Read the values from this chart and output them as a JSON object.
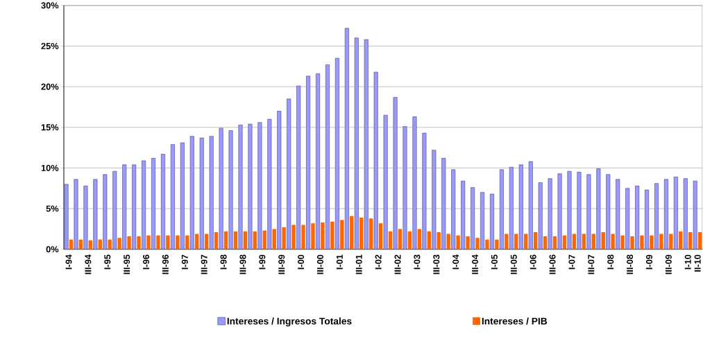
{
  "chart_data": {
    "type": "bar",
    "categories": [
      "I-94",
      null,
      "III-94",
      null,
      "I-95",
      null,
      "III-95",
      null,
      "I-96",
      null,
      "III-96",
      null,
      "I-97",
      null,
      "III-97",
      null,
      "I-98",
      null,
      "III-98",
      null,
      "I-99",
      null,
      "III-99",
      null,
      "I-00",
      null,
      "III-00",
      null,
      "I-01",
      null,
      "III-01",
      null,
      "I-02",
      null,
      "III-02",
      null,
      "I-03",
      null,
      "III-03",
      null,
      "I-04",
      null,
      "III-04",
      null,
      "I-05",
      null,
      "III-05",
      null,
      "I-06",
      null,
      "III-06",
      null,
      "I-07",
      null,
      "III-07",
      null,
      "I-08",
      null,
      "III-08",
      null,
      "I-09",
      null,
      "III-09",
      null,
      "I-10",
      "II-10"
    ],
    "series": [
      {
        "name": "Intereses / Ingresos Totales",
        "color": "#9999ff",
        "values": [
          8.0,
          8.6,
          7.8,
          8.6,
          9.2,
          9.6,
          10.4,
          10.4,
          10.9,
          11.2,
          11.7,
          12.9,
          13.1,
          13.9,
          13.7,
          13.9,
          14.9,
          14.6,
          15.3,
          15.4,
          15.6,
          16.0,
          17.0,
          18.5,
          20.1,
          21.3,
          21.6,
          22.7,
          23.5,
          27.2,
          26.0,
          25.8,
          21.8,
          16.5,
          18.7,
          15.1,
          16.3,
          14.3,
          12.2,
          11.2,
          9.8,
          8.4,
          7.6,
          7.0,
          6.8,
          9.8,
          10.1,
          10.4,
          10.8,
          8.2,
          8.7,
          9.3,
          9.6,
          9.5,
          9.2,
          9.9,
          9.2,
          8.6,
          7.5,
          7.8,
          7.3,
          8.1,
          8.6,
          8.9,
          8.7,
          8.4
        ]
      },
      {
        "name": "Intereses / PIB",
        "color": "#ff6600",
        "values": [
          1.2,
          1.2,
          1.1,
          1.2,
          1.2,
          1.4,
          1.6,
          1.6,
          1.7,
          1.7,
          1.7,
          1.7,
          1.7,
          1.9,
          1.9,
          2.1,
          2.2,
          2.2,
          2.2,
          2.2,
          2.3,
          2.5,
          2.7,
          3.0,
          3.0,
          3.2,
          3.3,
          3.4,
          3.6,
          4.1,
          3.9,
          3.8,
          3.2,
          2.2,
          2.5,
          2.2,
          2.5,
          2.2,
          2.1,
          1.9,
          1.7,
          1.6,
          1.4,
          1.2,
          1.2,
          1.9,
          1.9,
          1.9,
          2.1,
          1.6,
          1.6,
          1.7,
          1.9,
          1.9,
          1.9,
          2.1,
          1.9,
          1.7,
          1.6,
          1.7,
          1.7,
          1.9,
          1.9,
          2.2,
          2.1,
          2.1
        ]
      }
    ],
    "ylim": [
      0,
      30
    ],
    "yticks": [
      {
        "value": 0,
        "label": "0%"
      },
      {
        "value": 5,
        "label": "5%"
      },
      {
        "value": 10,
        "label": "10%"
      },
      {
        "value": 15,
        "label": "15%"
      },
      {
        "value": 20,
        "label": "20%"
      },
      {
        "value": 25,
        "label": "25%"
      },
      {
        "value": 30,
        "label": "30%"
      }
    ],
    "grid": "y",
    "legend": "bottom"
  }
}
